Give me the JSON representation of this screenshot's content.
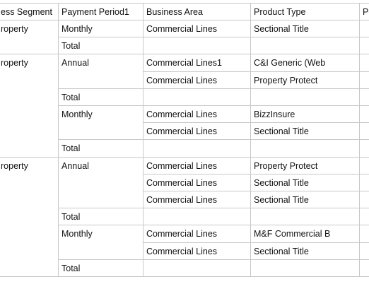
{
  "headers": [
    "ess Segment",
    "Payment Period1",
    "Business Area",
    "Product Type",
    "Po"
  ],
  "groups": [
    {
      "segment": "roperty",
      "periods": [
        {
          "period": "Monthly",
          "rows": [
            {
              "area": "Commercial Lines",
              "product": "Sectional Title"
            }
          ],
          "total": "Total"
        }
      ]
    },
    {
      "segment": "roperty",
      "periods": [
        {
          "period": "Annual",
          "rows": [
            {
              "area": "Commercial Lines1",
              "product": "C&I Generic (Web"
            },
            {
              "area": "Commercial Lines",
              "product": "Property Protect"
            }
          ],
          "total": "Total"
        },
        {
          "period": "Monthly",
          "rows": [
            {
              "area": "Commercial Lines",
              "product": "BizzInsure"
            },
            {
              "area": "Commercial Lines",
              "product": "Sectional Title"
            }
          ],
          "total": "Total"
        }
      ]
    },
    {
      "segment": "roperty",
      "periods": [
        {
          "period": "Annual",
          "rows": [
            {
              "area": "Commercial Lines",
              "product": "Property Protect"
            },
            {
              "area": "Commercial Lines",
              "product": "Sectional Title"
            },
            {
              "area": "Commercial Lines",
              "product": "Sectional Title"
            }
          ],
          "total": "Total"
        },
        {
          "period": "Monthly",
          "rows": [
            {
              "area": "Commercial Lines",
              "product": "M&F Commercial B"
            },
            {
              "area": "Commercial Lines",
              "product": "Sectional Title"
            }
          ],
          "total": "Total"
        }
      ]
    }
  ]
}
